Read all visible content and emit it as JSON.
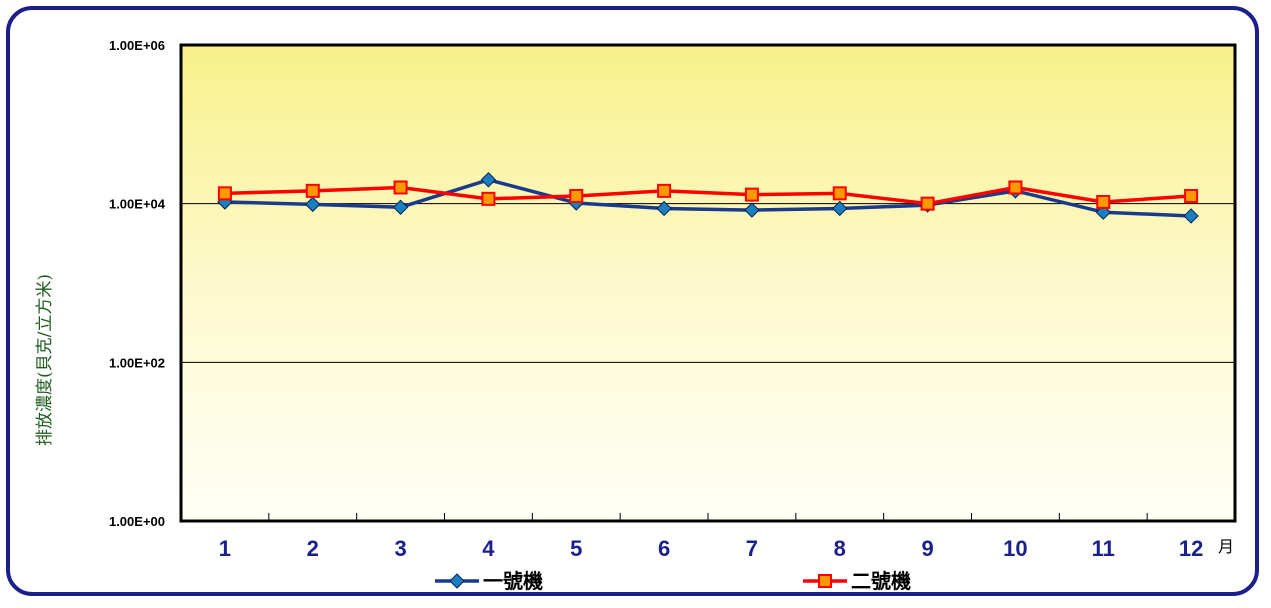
{
  "chart_data": {
    "type": "line",
    "title": "",
    "xlabel": "月",
    "ylabel": "排放濃度(貝克/立方米)",
    "y_scale": "log",
    "ylim": [
      1,
      1000000
    ],
    "y_ticks": [
      1,
      100,
      10000,
      1000000
    ],
    "y_tick_labels": [
      "1.00E+00",
      "1.00E+02",
      "1.00E+04",
      "1.00E+06"
    ],
    "categories": [
      "1",
      "2",
      "3",
      "4",
      "5",
      "6",
      "7",
      "8",
      "9",
      "10",
      "11",
      "12"
    ],
    "grid": "horizontal major lines",
    "legend_position": "bottom",
    "series": [
      {
        "name": "一號機",
        "color": "#1a3a8c",
        "marker": "diamond",
        "values": [
          10500,
          9800,
          9000,
          20000,
          10200,
          8700,
          8300,
          8700,
          9600,
          14500,
          7800,
          7000
        ]
      },
      {
        "name": "二號機",
        "color": "#ff0000",
        "marker": "square",
        "values": [
          13500,
          14500,
          16000,
          11500,
          12500,
          14500,
          13000,
          13500,
          10000,
          16000,
          10500,
          12500
        ]
      }
    ]
  }
}
